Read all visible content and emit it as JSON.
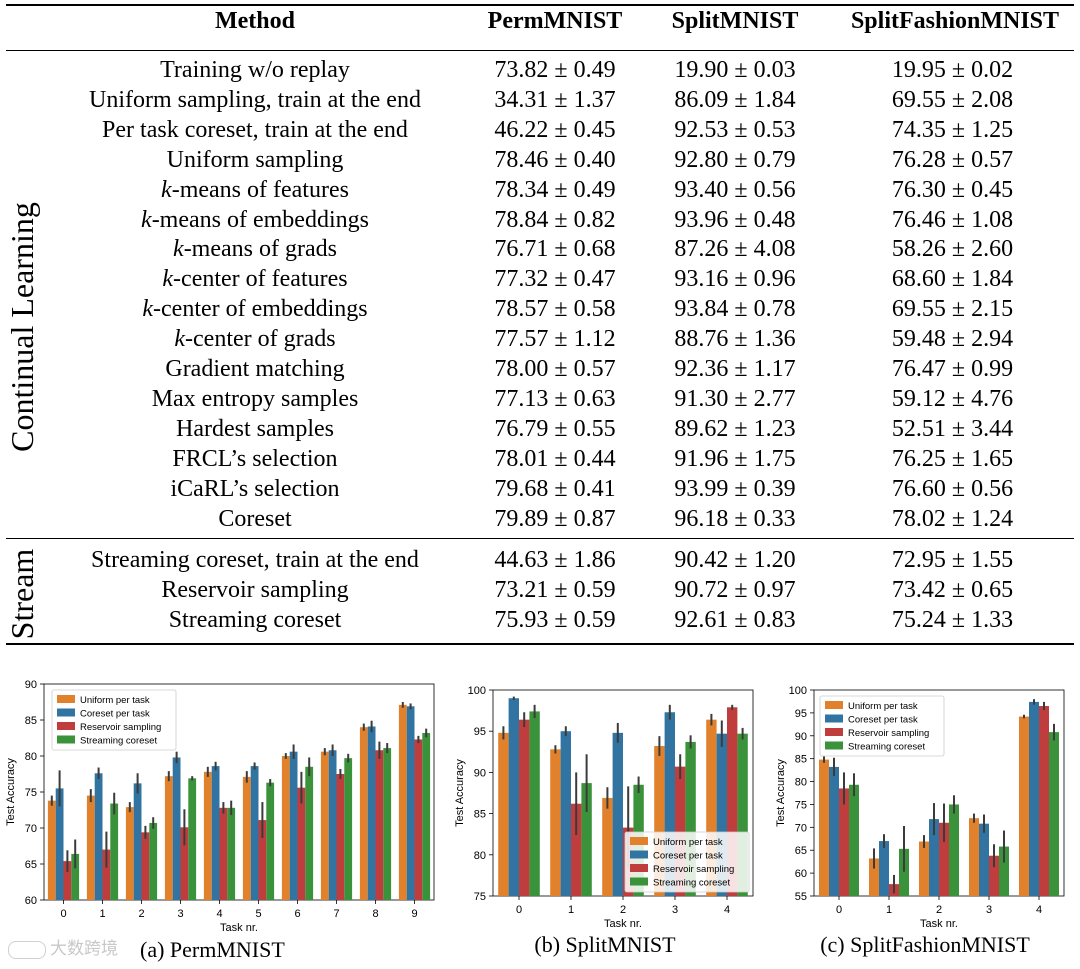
{
  "table": {
    "headers": [
      "Method",
      "PermMNIST",
      "SplitMNIST",
      "SplitFashionMNIST"
    ],
    "groups": [
      {
        "label": "Continual Learning",
        "rows": [
          {
            "method": "Training w/o replay",
            "perm": "73.82 ± 0.49",
            "split": "19.90 ± 0.03",
            "fashion": "19.95 ± 0.02"
          },
          {
            "method": "Uniform sampling, train at the end",
            "perm": "34.31 ± 1.37",
            "split": "86.09 ± 1.84",
            "fashion": "69.55 ± 2.08"
          },
          {
            "method": "Per task coreset, train at the end",
            "perm": "46.22 ± 0.45",
            "split": "92.53 ± 0.53",
            "fashion": "74.35 ± 1.25"
          },
          {
            "method": "Uniform sampling",
            "perm": "78.46 ± 0.40",
            "split": "92.80 ± 0.79",
            "fashion": "76.28 ± 0.57"
          },
          {
            "method": "k-means of features",
            "perm": "78.34 ± 0.49",
            "split": "93.40 ± 0.56",
            "fashion": "76.30 ± 0.45"
          },
          {
            "method": "k-means of embeddings",
            "perm": "78.84 ± 0.82",
            "split": "93.96 ± 0.48",
            "fashion": "76.46 ± 1.08"
          },
          {
            "method": "k-means of grads",
            "perm": "76.71 ± 0.68",
            "split": "87.26 ± 4.08",
            "fashion": "58.26 ± 2.60"
          },
          {
            "method": "k-center of features",
            "perm": "77.32 ± 0.47",
            "split": "93.16 ± 0.96",
            "fashion": "68.60 ± 1.84"
          },
          {
            "method": "k-center of embeddings",
            "perm": "78.57 ± 0.58",
            "split": "93.84 ± 0.78",
            "fashion": "69.55 ± 2.15"
          },
          {
            "method": "k-center of grads",
            "perm": "77.57 ± 1.12",
            "split": "88.76 ± 1.36",
            "fashion": "59.48 ± 2.94"
          },
          {
            "method": "Gradient matching",
            "perm": "78.00 ± 0.57",
            "split": "92.36 ± 1.17",
            "fashion": "76.47 ± 0.99"
          },
          {
            "method": "Max entropy samples",
            "perm": "77.13 ± 0.63",
            "split": "91.30 ± 2.77",
            "fashion": "59.12 ± 4.76"
          },
          {
            "method": "Hardest samples",
            "perm": "76.79 ± 0.55",
            "split": "89.62 ± 1.23",
            "fashion": "52.51 ± 3.44"
          },
          {
            "method": "FRCL’s selection",
            "perm": "78.01 ± 0.44",
            "split": "91.96 ± 1.75",
            "fashion": "76.25 ± 1.65"
          },
          {
            "method": "iCaRL’s selection",
            "perm": "79.68 ± 0.41",
            "split": "93.99 ± 0.39",
            "fashion": "76.60 ± 0.56"
          },
          {
            "method": "Coreset",
            "perm": "79.89 ± 0.87",
            "split": "96.18 ± 0.33",
            "fashion": "78.02 ± 1.24"
          }
        ]
      },
      {
        "label": "Stream",
        "rows": [
          {
            "method": "Streaming coreset, train at the end",
            "perm": "44.63 ± 1.86",
            "split": "90.42 ± 1.20",
            "fashion": "72.95 ± 1.55"
          },
          {
            "method": "Reservoir sampling",
            "perm": "73.21 ± 0.59",
            "split": "90.72 ± 0.97",
            "fashion": "73.42 ± 0.65"
          },
          {
            "method": "Streaming coreset",
            "perm": "75.93 ± 0.59",
            "split": "92.61 ± 0.83",
            "fashion": "75.24 ± 1.33"
          }
        ]
      }
    ]
  },
  "colors": {
    "uniform": "#e1812c",
    "coreset": "#3274a1",
    "reservoir": "#c03d3e",
    "streaming": "#3a923a",
    "error": "#3b3b3b"
  },
  "chart_data": [
    {
      "type": "bar",
      "caption": "(a) PermMNIST",
      "xlabel": "Task nr.",
      "ylabel": "Test Accuracy",
      "ylim": [
        60,
        90
      ],
      "yticks": [
        60,
        65,
        70,
        75,
        80,
        85,
        90
      ],
      "categories": [
        "0",
        "1",
        "2",
        "3",
        "4",
        "5",
        "6",
        "7",
        "8",
        "9"
      ],
      "legend_position": "top-left",
      "series": [
        {
          "name": "Uniform per task",
          "color_key": "uniform",
          "values": [
            73.8,
            74.5,
            72.9,
            77.2,
            77.8,
            77.1,
            80.0,
            80.6,
            84.0,
            87.1
          ],
          "err": [
            0.7,
            0.9,
            0.7,
            0.7,
            0.7,
            0.8,
            0.4,
            0.5,
            0.5,
            0.4
          ]
        },
        {
          "name": "Coreset per task",
          "color_key": "coreset",
          "values": [
            75.5,
            77.6,
            76.2,
            79.8,
            78.6,
            78.6,
            80.6,
            80.8,
            84.1,
            86.9
          ],
          "err": [
            2.5,
            0.8,
            1.4,
            0.8,
            0.6,
            0.5,
            1.0,
            0.8,
            0.8,
            0.4
          ]
        },
        {
          "name": "Reservoir sampling",
          "color_key": "reservoir",
          "values": [
            65.4,
            67.0,
            69.4,
            70.1,
            72.8,
            71.1,
            75.6,
            77.5,
            80.8,
            82.3
          ],
          "err": [
            1.5,
            2.5,
            0.9,
            2.5,
            0.8,
            2.5,
            2.2,
            0.7,
            1.2,
            0.5
          ]
        },
        {
          "name": "Streaming coreset",
          "color_key": "streaming",
          "values": [
            66.4,
            73.4,
            70.7,
            76.9,
            72.8,
            76.3,
            78.5,
            79.7,
            81.1,
            83.2
          ],
          "err": [
            2.0,
            1.5,
            0.8,
            0.3,
            1.0,
            0.5,
            1.3,
            0.6,
            0.7,
            0.6
          ]
        }
      ]
    },
    {
      "type": "bar",
      "caption": "(b) SplitMNIST",
      "xlabel": "Task nr.",
      "ylabel": "Test Accuracy",
      "ylim": [
        75,
        100
      ],
      "yticks": [
        75,
        80,
        85,
        90,
        95,
        100
      ],
      "categories": [
        "0",
        "1",
        "2",
        "3",
        "4"
      ],
      "legend_position": "bottom-right",
      "series": [
        {
          "name": "Uniform per task",
          "color_key": "uniform",
          "values": [
            94.8,
            92.8,
            86.9,
            93.2,
            96.4
          ],
          "err": [
            0.8,
            0.5,
            1.3,
            1.2,
            0.7
          ]
        },
        {
          "name": "Coreset per task",
          "color_key": "coreset",
          "values": [
            99.0,
            95.0,
            94.8,
            97.3,
            94.7
          ],
          "err": [
            0.2,
            0.6,
            1.2,
            0.9,
            1.6
          ]
        },
        {
          "name": "Reservoir sampling",
          "color_key": "reservoir",
          "values": [
            96.4,
            86.2,
            83.3,
            90.7,
            97.9
          ],
          "err": [
            0.9,
            3.8,
            5.0,
            1.5,
            0.3
          ]
        },
        {
          "name": "Streaming coreset",
          "color_key": "streaming",
          "values": [
            97.4,
            88.7,
            88.5,
            93.7,
            94.7
          ],
          "err": [
            0.8,
            3.5,
            1.0,
            0.8,
            0.7
          ]
        }
      ]
    },
    {
      "type": "bar",
      "caption": "(c) SplitFashionMNIST",
      "xlabel": "Task nr.",
      "ylabel": "Test Accuracy",
      "ylim": [
        55,
        100
      ],
      "yticks": [
        55,
        60,
        65,
        70,
        75,
        80,
        85,
        90,
        95,
        100
      ],
      "categories": [
        "0",
        "1",
        "2",
        "3",
        "4"
      ],
      "legend_position": "top-left",
      "series": [
        {
          "name": "Uniform per task",
          "color_key": "uniform",
          "values": [
            84.8,
            63.2,
            66.9,
            72.0,
            94.2
          ],
          "err": [
            0.7,
            2.2,
            1.4,
            1.0,
            0.4
          ]
        },
        {
          "name": "Coreset per task",
          "color_key": "coreset",
          "values": [
            83.2,
            67.0,
            71.8,
            70.8,
            97.4
          ],
          "err": [
            2.0,
            1.5,
            3.5,
            2.0,
            0.6
          ]
        },
        {
          "name": "Reservoir sampling",
          "color_key": "reservoir",
          "values": [
            78.5,
            57.6,
            71.0,
            63.8,
            96.5
          ],
          "err": [
            3.5,
            2.0,
            4.2,
            2.5,
            0.9
          ]
        },
        {
          "name": "Streaming coreset",
          "color_key": "streaming",
          "values": [
            79.3,
            65.3,
            75.0,
            65.8,
            90.8
          ],
          "err": [
            2.5,
            5.0,
            2.0,
            3.5,
            1.8
          ]
        }
      ]
    }
  ],
  "watermark": "大数跨境"
}
